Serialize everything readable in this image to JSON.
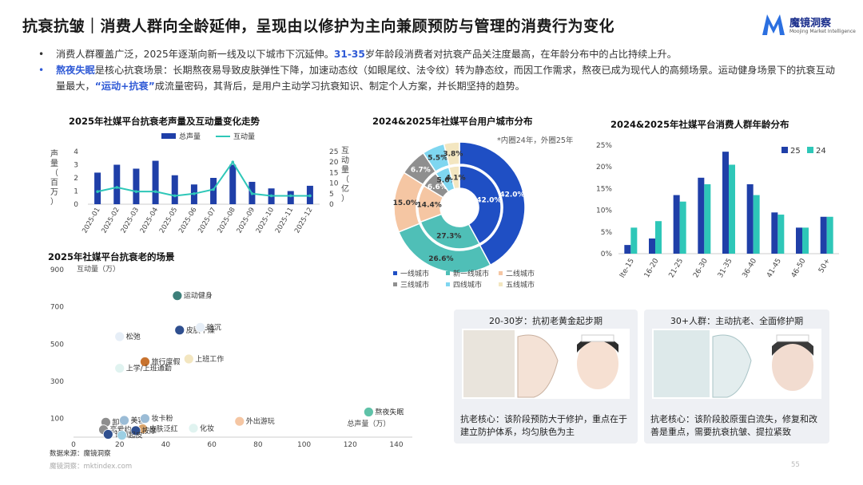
{
  "header": {
    "title": "抗衰抗皱｜消费人群向全龄延伸，呈现由以修护为主向兼顾预防与管理的消费行为变化",
    "logo_text": "魔镜洞察",
    "logo_sub": "Moojing Market Intelligence"
  },
  "bullets": [
    {
      "parts": [
        {
          "text": "消费人群覆盖广泛，2025年逐渐向新一线及以下城市下沉延伸。",
          "hl": false
        },
        {
          "text": "31-35",
          "hl": true
        },
        {
          "text": "岁年龄段消费者对抗衰产品关注度最高，在年龄分布中的占比持续上升。",
          "hl": false
        }
      ]
    },
    {
      "parts": [
        {
          "text": "熬夜失眠",
          "hl": true
        },
        {
          "text": "是核心抗衰场景：长期熬夜易导致皮肤弹性下降，加速动态纹（如眼尾纹、法令纹）转为静态纹，而因工作需求，熬夜已成为现代人的高频场景。运动健身场景下的抗衰互动量最大，",
          "hl": false
        },
        {
          "text": "“运动+抗衰”",
          "hl": true
        },
        {
          "text": "成流量密码，其背后，是用户主动学习抗衰知识、制定个人方案，并长期坚持的趋势。",
          "hl": false
        }
      ]
    }
  ],
  "colors": {
    "navy": "#1f3fa8",
    "teal": "#2ec7b8",
    "blue_hl": "#2f5ad6"
  },
  "chart_data": [
    {
      "type": "bar",
      "title": "2025年社媒平台抗衰老声量及互动量变化走势",
      "categories": [
        "2025-01",
        "2025-02",
        "2025-03",
        "2025-04",
        "2025-05",
        "2025-06",
        "2025-07",
        "2025-08",
        "2025-09",
        "2025-10",
        "2025-11",
        "2025-12"
      ],
      "series": [
        {
          "name": "总声量",
          "type": "bar",
          "axis": "left",
          "values": [
            2.4,
            3.0,
            2.7,
            3.3,
            2.2,
            1.5,
            2.0,
            3.0,
            1.7,
            1.2,
            1.0,
            1.4
          ]
        },
        {
          "name": "互动量",
          "type": "line",
          "axis": "right",
          "values": [
            6,
            8,
            6,
            6,
            4,
            5,
            7,
            20,
            5,
            4,
            4,
            4
          ]
        }
      ],
      "ylabel": "声量（百万）",
      "ylabel_right": "互动量（亿）",
      "ylim": [
        0,
        4
      ],
      "ylim_right": [
        0,
        25
      ],
      "yticks": [
        0,
        1,
        2,
        3,
        4
      ],
      "yticks_right": [
        0,
        5,
        10,
        15,
        20,
        25
      ]
    },
    {
      "type": "pie",
      "title": "2024&2025年社媒平台用户城市分布",
      "note": "*内圈24年，外圈25年",
      "categories": [
        "一线城市",
        "新一线城市",
        "二线城市",
        "三线城市",
        "四线城市",
        "五线城市"
      ],
      "colors": [
        "#1f4fc4",
        "#4fbfb7",
        "#f5c6a3",
        "#8f8f8f",
        "#7fd6f0",
        "#f3e6c0"
      ],
      "series": [
        {
          "name": "外圈25年",
          "values": [
            42.0,
            26.6,
            15.0,
            6.7,
            5.5,
            3.8
          ],
          "labels": [
            "42.0%",
            "26.6%",
            "15.0%",
            "6.7%",
            "5.5%",
            "3.8%"
          ]
        },
        {
          "name": "内圈24年",
          "values": [
            42.0,
            27.3,
            14.4,
            6.6,
            5.6,
            4.1
          ],
          "labels": [
            "42.0%",
            "27.3%",
            "14.4%",
            "6.6%",
            "5.6%",
            "4.1%"
          ]
        }
      ]
    },
    {
      "type": "bar",
      "title": "2024&2025年社媒平台消费人群年龄分布",
      "categories": [
        "lte-15",
        "16-20",
        "21-25",
        "26-30",
        "31-35",
        "36-40",
        "41-45",
        "46-50",
        "50+"
      ],
      "series": [
        {
          "name": "25",
          "values": [
            2.0,
            3.5,
            13.5,
            17.5,
            23.5,
            16.0,
            9.5,
            6.0,
            8.5
          ]
        },
        {
          "name": "24",
          "values": [
            6.0,
            7.5,
            12.0,
            16.0,
            20.5,
            13.5,
            9.0,
            6.0,
            8.5
          ]
        }
      ],
      "ylim": [
        0,
        25
      ],
      "yticks": [
        "0%",
        "5%",
        "10%",
        "15%",
        "20%",
        "25%"
      ]
    },
    {
      "type": "scatter",
      "title": "2025年社媒平台抗衰老的场景",
      "xlabel": "总声量（万）",
      "ylabel": "互动量（万）",
      "xlim": [
        0,
        140
      ],
      "ylim": [
        0,
        900
      ],
      "xticks": [
        0,
        20,
        40,
        60,
        80,
        100,
        120,
        140
      ],
      "yticks": [
        100,
        300,
        500,
        700,
        900
      ],
      "points": [
        {
          "label": "运动健身",
          "x": 45,
          "y": 760,
          "color": "#3d7f7a"
        },
        {
          "label": "皮肤干燥",
          "x": 46,
          "y": 575,
          "color": "#2f4f8f"
        },
        {
          "label": "暗沉",
          "x": 55,
          "y": 590,
          "color": "#e6eef7"
        },
        {
          "label": "松弛",
          "x": 20,
          "y": 540,
          "color": "#e6eef7"
        },
        {
          "label": "旅行度假",
          "x": 31,
          "y": 405,
          "color": "#c8732f"
        },
        {
          "label": "上班工作",
          "x": 50,
          "y": 420,
          "color": "#f3e6c0"
        },
        {
          "label": "上学/上班通勤",
          "x": 20,
          "y": 370,
          "color": "#e0f3f0"
        },
        {
          "label": "熬夜失眠",
          "x": 128,
          "y": 135,
          "color": "#5fc2a8"
        },
        {
          "label": "外出游玩",
          "x": 72,
          "y": 85,
          "color": "#f5c6a3"
        },
        {
          "label": "化妆",
          "x": 52,
          "y": 48,
          "color": "#e0f3f0"
        },
        {
          "label": "卸妆",
          "x": 14,
          "y": 80,
          "color": "#8e8e8e"
        },
        {
          "label": "美容",
          "x": 22,
          "y": 90,
          "color": "#9bbcd6"
        },
        {
          "label": "妆卡粉",
          "x": 31,
          "y": 100,
          "color": "#9bbcd6"
        },
        {
          "label": "恋爱约会",
          "x": 13,
          "y": 40,
          "color": "#8e8e8e"
        },
        {
          "label": "皮肤泛红",
          "x": 30,
          "y": 45,
          "color": "#d9a46b"
        },
        {
          "label": "按摩",
          "x": 27,
          "y": 35,
          "color": "#2f4f8f"
        },
        {
          "label": "长痘",
          "x": 15,
          "y": 15,
          "color": "#2f4f8f"
        },
        {
          "label": "起皮",
          "x": 21,
          "y": 10,
          "color": "#9ccfe3"
        }
      ]
    }
  ],
  "cards": [
    {
      "head": "20-30岁：抗初老黄金起步期",
      "note": "抗老核心：该阶段预防大于修护，重点在于建立防护体系，均匀肤色为主"
    },
    {
      "head": "30+人群：主动抗老、全面修护期",
      "note": "抗老核心：该阶段胶原蛋白流失，修复和改善是重点，需要抗衰抗皱、提拉紧致"
    }
  ],
  "footer": {
    "source": "数据来源：魔镜洞察",
    "url": "魔镜洞察：mktindex.com",
    "page": "55"
  }
}
